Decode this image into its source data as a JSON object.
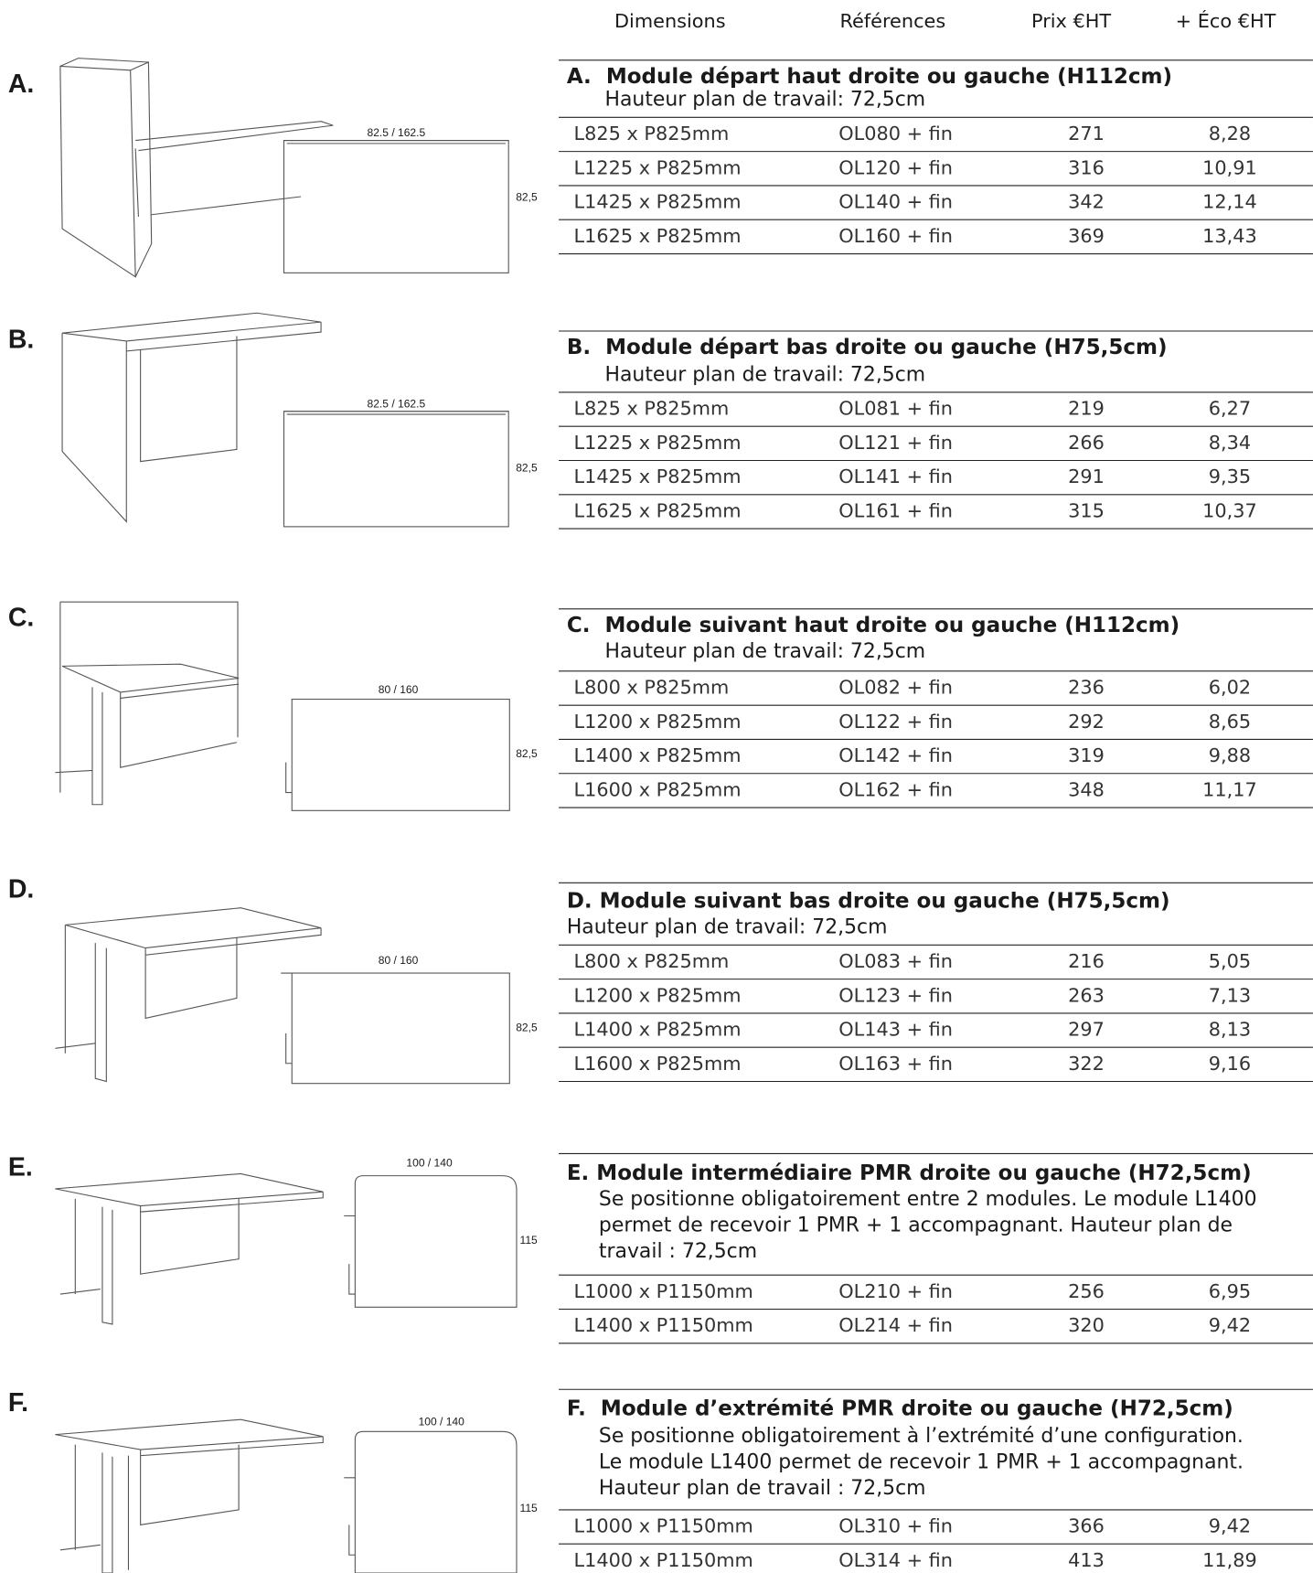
{
  "header": {
    "columns": [
      "Dimensions",
      "Références",
      "Prix  €HT",
      "+ Éco €HT"
    ]
  },
  "sections": [
    {
      "letter": "A.",
      "title": "A.  Module départ haut droite ou gauche (H112cm)",
      "subtitle_lines": [
        "Hauteur plan de travail: 72,5cm"
      ],
      "drawing": {
        "width_label": "82.5 / 162.5",
        "depth_label": "82,5"
      },
      "rows": [
        [
          "L825 x P825mm",
          "OL080 + fin",
          "271",
          "8,28"
        ],
        [
          "L1225 x P825mm",
          "OL120 + fin",
          "316",
          "10,91"
        ],
        [
          "L1425 x P825mm",
          "OL140 + fin",
          "342",
          "12,14"
        ],
        [
          "L1625 x P825mm",
          "OL160 + fin",
          "369",
          "13,43"
        ]
      ]
    },
    {
      "letter": "B.",
      "title": "B.  Module départ bas droite ou gauche (H75,5cm)",
      "subtitle_lines": [
        "Hauteur plan de travail: 72,5cm"
      ],
      "drawing": {
        "width_label": "82.5 / 162.5",
        "depth_label": "82,5"
      },
      "rows": [
        [
          "L825 x P825mm",
          "OL081 + fin",
          "219",
          "6,27"
        ],
        [
          "L1225 x P825mm",
          "OL121 + fin",
          "266",
          "8,34"
        ],
        [
          "L1425 x P825mm",
          "OL141 + fin",
          "291",
          "9,35"
        ],
        [
          "L1625 x P825mm",
          "OL161 + fin",
          "315",
          "10,37"
        ]
      ]
    },
    {
      "letter": "C.",
      "title": "C.  Module suivant haut droite ou gauche (H112cm)",
      "subtitle_lines": [
        "Hauteur plan de travail: 72,5cm"
      ],
      "drawing": {
        "width_label": "80 / 160",
        "depth_label": "82,5"
      },
      "rows": [
        [
          "L800 x P825mm",
          "OL082 + fin",
          "236",
          "6,02"
        ],
        [
          "L1200 x P825mm",
          "OL122 + fin",
          "292",
          "8,65"
        ],
        [
          "L1400 x P825mm",
          "OL142 + fin",
          "319",
          "9,88"
        ],
        [
          "L1600 x P825mm",
          "OL162 + fin",
          "348",
          "11,17"
        ]
      ]
    },
    {
      "letter": "D.",
      "title": "D. Module suivant bas droite ou gauche (H75,5cm)",
      "subtitle_lines": [
        "Hauteur plan de travail: 72,5cm"
      ],
      "drawing": {
        "width_label": "80 / 160",
        "depth_label": "82,5"
      },
      "rows": [
        [
          "L800 x P825mm",
          "OL083 + fin",
          "216",
          "5,05"
        ],
        [
          "L1200 x P825mm",
          "OL123 + fin",
          "263",
          "7,13"
        ],
        [
          "L1400 x P825mm",
          "OL143 + fin",
          "297",
          "8,13"
        ],
        [
          "L1600 x P825mm",
          "OL163 + fin",
          "322",
          "9,16"
        ]
      ]
    },
    {
      "letter": "E.",
      "title": "E. Module intermédiaire PMR droite ou gauche (H72,5cm)",
      "subtitle_lines": [
        "Se positionne obligatoirement entre 2 modules. Le module L1400",
        "permet de recevoir 1 PMR + 1 accompagnant. Hauteur plan de",
        "travail : 72,5cm"
      ],
      "drawing": {
        "width_label": "100 / 140",
        "depth_label": "115"
      },
      "rows": [
        [
          "L1000 x P1150mm",
          "OL210 + fin",
          "256",
          "6,95"
        ],
        [
          "L1400 x P1150mm",
          "OL214 + fin",
          "320",
          "9,42"
        ]
      ]
    },
    {
      "letter": "F.",
      "title": "F.  Module d’extrémité PMR droite ou gauche (H72,5cm)",
      "subtitle_lines": [
        "Se positionne obligatoirement à l’extrémité d’une configuration.",
        "Le module L1400 permet de recevoir 1 PMR + 1 accompagnant.",
        "Hauteur plan de travail : 72,5cm"
      ],
      "drawing": {
        "width_label": "100 / 140",
        "depth_label": "115"
      },
      "rows": [
        [
          "L1000 x P1150mm",
          "OL310 + fin",
          "366",
          "9,42"
        ],
        [
          "L1400 x P1150mm",
          "OL314 + fin",
          "413",
          "11,89"
        ]
      ]
    }
  ]
}
